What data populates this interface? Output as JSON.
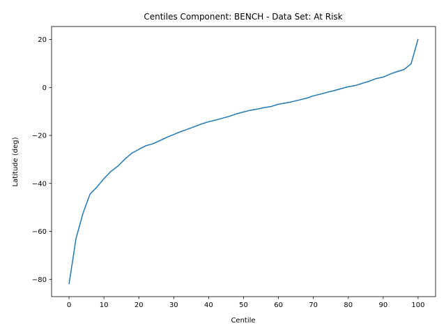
{
  "chart_data": {
    "type": "line",
    "title": "Centiles Component: BENCH - Data Set: At Risk",
    "xlabel": "Centile",
    "ylabel": "Latitude (deg)",
    "xlim": [
      -5,
      105
    ],
    "ylim": [
      -87.2,
      25.4
    ],
    "grid": false,
    "x_ticks": [
      0,
      10,
      20,
      30,
      40,
      50,
      60,
      70,
      80,
      90,
      100
    ],
    "y_ticks": [
      -80,
      -60,
      -40,
      -20,
      0,
      20
    ],
    "x_tick_labels": [
      "0",
      "10",
      "20",
      "30",
      "40",
      "50",
      "60",
      "70",
      "80",
      "90",
      "100"
    ],
    "y_tick_labels": [
      "−80",
      "−60",
      "−40",
      "−20",
      "0",
      "20"
    ],
    "series": [
      {
        "color": "#1f77b4",
        "x": [
          0,
          2,
          4,
          6,
          8,
          10,
          12,
          14,
          16,
          18,
          20,
          22,
          24,
          26,
          28,
          30,
          32,
          34,
          36,
          38,
          40,
          42,
          44,
          46,
          48,
          50,
          52,
          54,
          56,
          58,
          60,
          62,
          64,
          66,
          68,
          70,
          72,
          74,
          76,
          78,
          80,
          82,
          84,
          86,
          88,
          90,
          92,
          94,
          96,
          98,
          100
        ],
        "y": [
          -82.0,
          -63.0,
          -52.5,
          -44.5,
          -41.5,
          -38.0,
          -35.0,
          -32.8,
          -29.9,
          -27.4,
          -25.8,
          -24.3,
          -23.5,
          -22.2,
          -20.8,
          -19.6,
          -18.4,
          -17.4,
          -16.3,
          -15.2,
          -14.3,
          -13.6,
          -12.8,
          -12.0,
          -11.0,
          -10.2,
          -9.5,
          -9.0,
          -8.4,
          -7.9,
          -7.0,
          -6.5,
          -5.9,
          -5.2,
          -4.5,
          -3.5,
          -2.8,
          -2.0,
          -1.3,
          -0.5,
          0.3,
          0.8,
          1.7,
          2.6,
          3.7,
          4.3,
          5.6,
          6.6,
          7.5,
          9.9,
          20.2
        ]
      }
    ]
  }
}
